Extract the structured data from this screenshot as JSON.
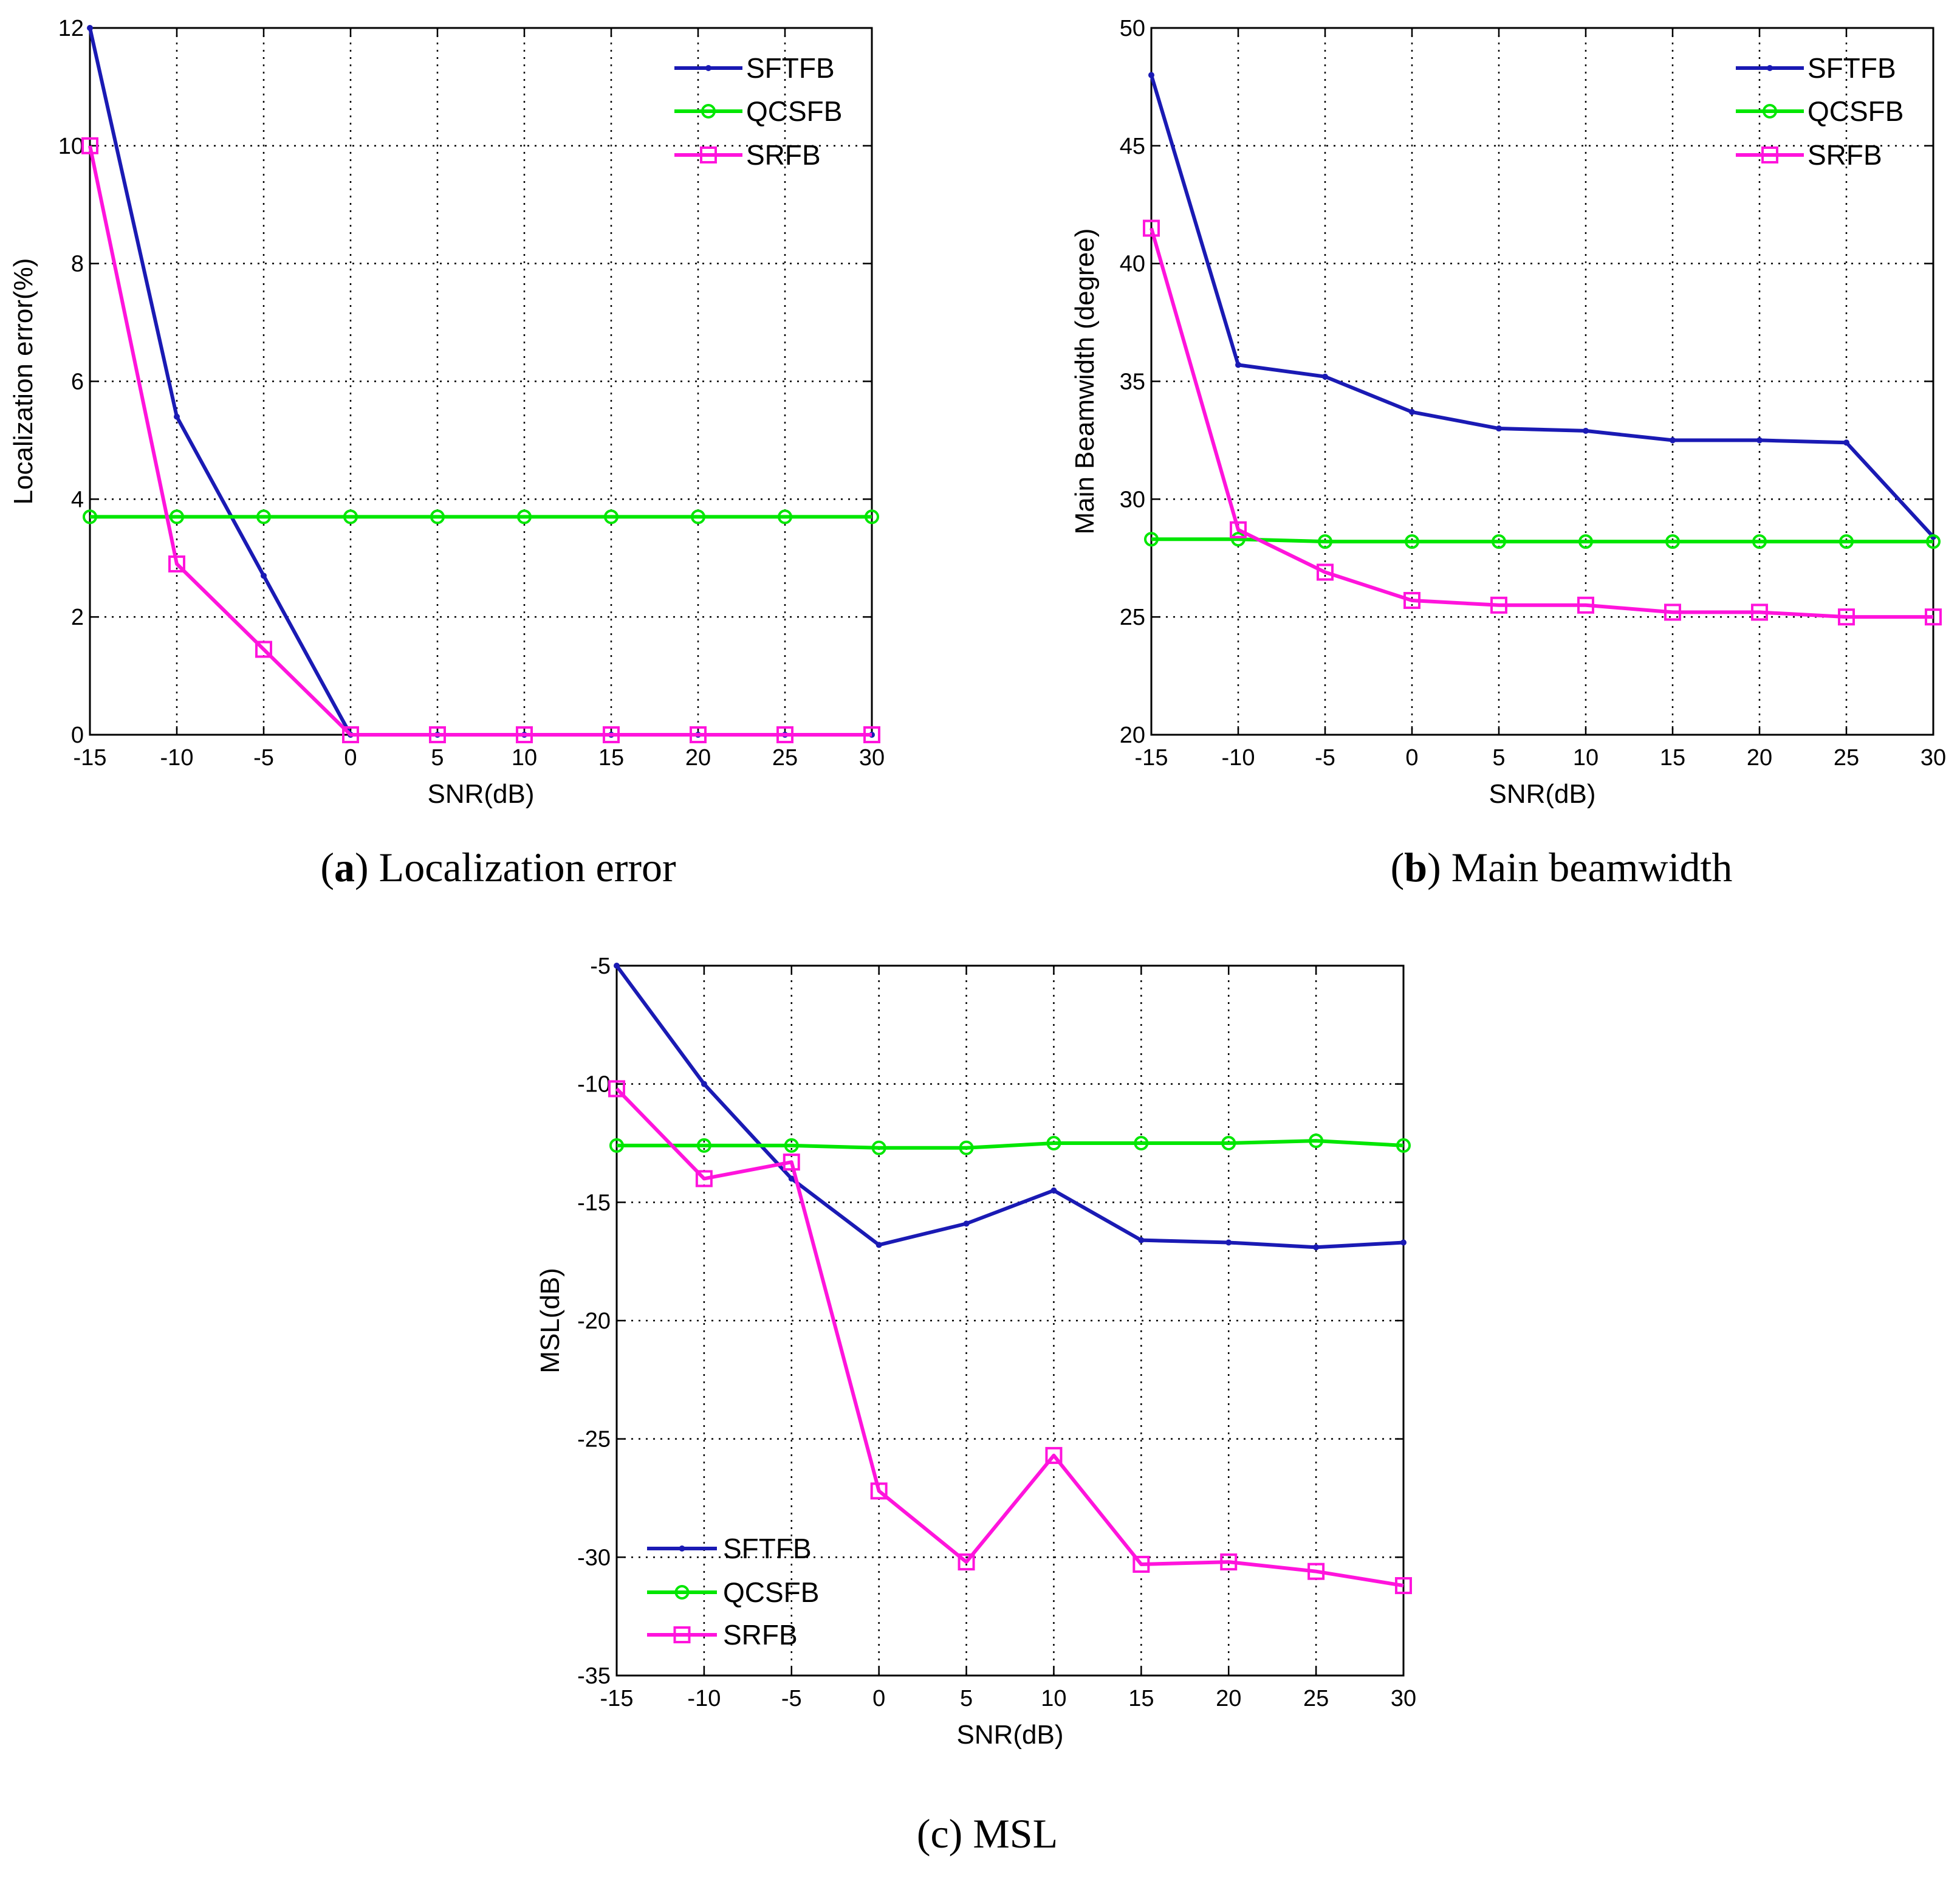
{
  "colors": {
    "SFTFB": "#1a1ab4",
    "QCSFB": "#00e600",
    "SRFB": "#ff14dc",
    "grid": "#000000",
    "axis": "#000000"
  },
  "chart_data": [
    {
      "id": "a",
      "type": "line",
      "title": "",
      "xlabel": "SNR(dB)",
      "ylabel": "Localization error(%)",
      "xlim": [
        -15,
        30
      ],
      "ylim": [
        0,
        12
      ],
      "xticks": [
        -15,
        -10,
        -5,
        0,
        5,
        10,
        15,
        20,
        25,
        30
      ],
      "yticks": [
        0,
        2,
        4,
        6,
        8,
        10,
        12
      ],
      "grid": true,
      "legend_position": "top-right",
      "x": [
        -15,
        -10,
        -5,
        0,
        5,
        10,
        15,
        20,
        25,
        30
      ],
      "series": [
        {
          "name": "SFTFB",
          "marker": "dot",
          "values": [
            12,
            5.4,
            2.7,
            0,
            0,
            0,
            0,
            0,
            0,
            0
          ]
        },
        {
          "name": "QCSFB",
          "marker": "circle",
          "values": [
            3.7,
            3.7,
            3.7,
            3.7,
            3.7,
            3.7,
            3.7,
            3.7,
            3.7,
            3.7
          ]
        },
        {
          "name": "SRFB",
          "marker": "square",
          "values": [
            10,
            2.9,
            1.45,
            0,
            0,
            0,
            0,
            0,
            0,
            0
          ]
        }
      ],
      "caption_letter": "(a)",
      "caption_text": " Localization error"
    },
    {
      "id": "b",
      "type": "line",
      "title": "",
      "xlabel": "SNR(dB)",
      "ylabel": "Main Beamwidth (degree)",
      "xlim": [
        -15,
        30
      ],
      "ylim": [
        20,
        50
      ],
      "xticks": [
        -15,
        -10,
        -5,
        0,
        5,
        10,
        15,
        20,
        25,
        30
      ],
      "yticks": [
        20,
        25,
        30,
        35,
        40,
        45,
        50
      ],
      "grid": true,
      "legend_position": "top-right",
      "x": [
        -15,
        -10,
        -5,
        0,
        5,
        10,
        15,
        20,
        25,
        30
      ],
      "series": [
        {
          "name": "SFTFB",
          "marker": "dot",
          "values": [
            48,
            35.7,
            35.2,
            33.7,
            33.0,
            32.9,
            32.5,
            32.5,
            32.4,
            28.4
          ]
        },
        {
          "name": "QCSFB",
          "marker": "circle",
          "values": [
            28.3,
            28.3,
            28.2,
            28.2,
            28.2,
            28.2,
            28.2,
            28.2,
            28.2,
            28.2
          ]
        },
        {
          "name": "SRFB",
          "marker": "square",
          "values": [
            41.5,
            28.7,
            26.9,
            25.7,
            25.5,
            25.5,
            25.2,
            25.2,
            25.0,
            25.0
          ]
        }
      ],
      "caption_letter": "(b)",
      "caption_text": " Main beamwidth"
    },
    {
      "id": "c",
      "type": "line",
      "title": "",
      "xlabel": "SNR(dB)",
      "ylabel": "MSL(dB)",
      "xlim": [
        -15,
        30
      ],
      "ylim": [
        -35,
        -5
      ],
      "xticks": [
        -15,
        -10,
        -5,
        0,
        5,
        10,
        15,
        20,
        25,
        30
      ],
      "yticks": [
        -35,
        -30,
        -25,
        -20,
        -15,
        -10,
        -5
      ],
      "grid": true,
      "legend_position": "bottom-left",
      "x": [
        -15,
        -10,
        -5,
        0,
        5,
        10,
        15,
        20,
        25,
        30
      ],
      "series": [
        {
          "name": "SFTFB",
          "marker": "dot",
          "values": [
            -5,
            -10,
            -14,
            -16.8,
            -15.9,
            -14.5,
            -16.6,
            -16.7,
            -16.9,
            -16.7
          ]
        },
        {
          "name": "QCSFB",
          "marker": "circle",
          "values": [
            -12.6,
            -12.6,
            -12.6,
            -12.7,
            -12.7,
            -12.5,
            -12.5,
            -12.5,
            -12.4,
            -12.6
          ]
        },
        {
          "name": "SRFB",
          "marker": "square",
          "values": [
            -10.2,
            -14,
            -13.3,
            -27.2,
            -30.2,
            -25.7,
            -30.3,
            -30.2,
            -30.6,
            -31.2
          ]
        }
      ],
      "caption_letter": "",
      "caption_text": "(c) MSL"
    }
  ]
}
